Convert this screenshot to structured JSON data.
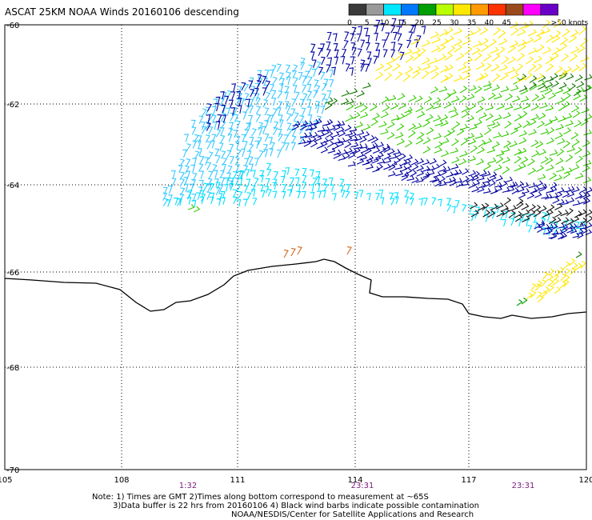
{
  "title": "ASCAT 25KM NOAA Winds 20160106 descending",
  "legend": {
    "labels": [
      "0",
      "5",
      "10",
      "15",
      "20",
      "25",
      "30",
      "35",
      "40",
      "45",
      ">50 knots"
    ],
    "colors": [
      "#3a3a3a",
      "#9a9a9a",
      "#00e8ff",
      "#0078ff",
      "#009f00",
      "#b8ff00",
      "#ffe800",
      "#ff9a00",
      "#ff3200",
      "#9a4a1a",
      "#ff00ff",
      "#6a00c8"
    ]
  },
  "map": {
    "lon_ticks": [
      "105",
      "108",
      "111",
      "114",
      "117",
      "120"
    ],
    "lat_ticks": [
      "-60",
      "-62",
      "-64",
      "-66",
      "-68",
      "-70"
    ],
    "pass_times": [
      "1:32",
      "23:31",
      "23:31"
    ],
    "wind_bands": [
      {
        "name": "light-blue",
        "color": "#37c8ff"
      },
      {
        "name": "cyan",
        "color": "#00e0ff"
      },
      {
        "name": "dark-blue",
        "color": "#0000a0"
      },
      {
        "name": "green",
        "color": "#33cc00"
      },
      {
        "name": "dark-green",
        "color": "#117700"
      },
      {
        "name": "yellow",
        "color": "#ffe600"
      },
      {
        "name": "contaminated",
        "color": "#111111"
      }
    ]
  },
  "notes": {
    "line1": "Note: 1) Times are GMT 2)Times along bottom correspond to measurement at ~65S",
    "line2": "3)Data buffer is 22 hrs from 20160106 4) Black wind barbs indicate possible contamination",
    "line3": "NOAA/NESDIS/Center for Satellite Applications and Research"
  }
}
